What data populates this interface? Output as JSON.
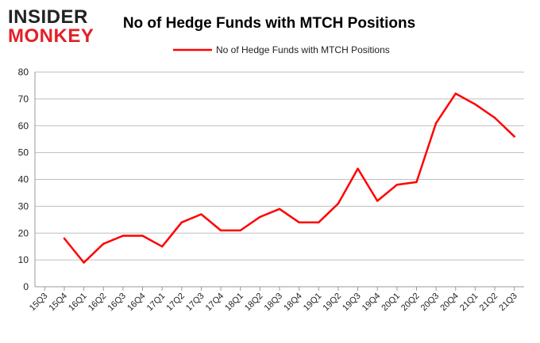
{
  "logo": {
    "line1": "INSIDER",
    "line2": "MONKEY"
  },
  "chart_data": {
    "type": "line",
    "title": "No of Hedge Funds with MTCH Positions",
    "xlabel": "",
    "ylabel": "",
    "categories": [
      "15Q3",
      "15Q4",
      "16Q1",
      "16Q2",
      "16Q3",
      "16Q4",
      "17Q1",
      "17Q2",
      "17Q3",
      "17Q4",
      "18Q1",
      "18Q2",
      "18Q3",
      "18Q4",
      "19Q1",
      "19Q2",
      "19Q3",
      "19Q4",
      "20Q1",
      "20Q2",
      "20Q3",
      "20Q4",
      "21Q1",
      "21Q2",
      "21Q3"
    ],
    "series": [
      {
        "name": "No of Hedge Funds with MTCH Positions",
        "color": "#ff0000",
        "values": [
          null,
          18,
          9,
          16,
          19,
          19,
          15,
          24,
          27,
          21,
          21,
          26,
          29,
          24,
          24,
          31,
          44,
          32,
          38,
          39,
          61,
          72,
          68,
          63,
          56
        ]
      }
    ],
    "ylim": [
      0,
      80
    ],
    "yticks": [
      "0",
      "10",
      "20",
      "30",
      "40",
      "50",
      "60",
      "70",
      "80"
    ],
    "grid": true,
    "legend": "top-center"
  }
}
